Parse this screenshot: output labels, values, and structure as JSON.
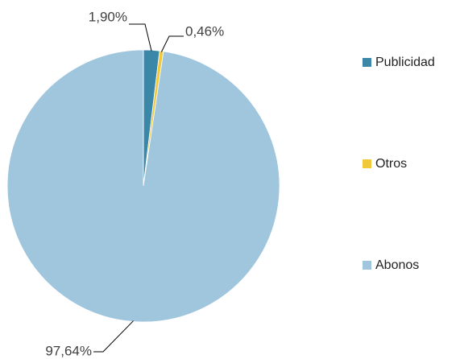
{
  "chart_data": {
    "type": "pie",
    "categories": [
      "Publicidad",
      "Otros",
      "Abonos"
    ],
    "values": [
      1.9,
      0.46,
      97.64
    ],
    "value_labels": [
      "1,90%",
      "0,46%",
      "97,64%"
    ],
    "colors": [
      "#3b87a8",
      "#f0c93a",
      "#a0c6de"
    ],
    "legend": "right"
  }
}
